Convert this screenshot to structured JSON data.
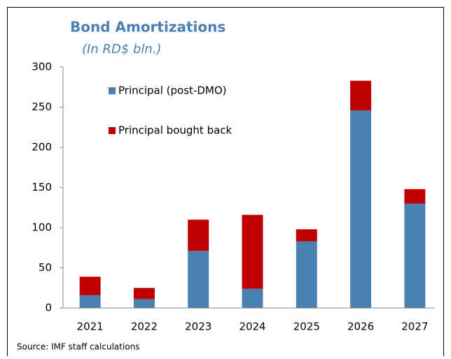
{
  "chart_data": {
    "type": "stacked_bar",
    "title": "Bond Amortizations",
    "subtitle": "(In RD$ bln.)",
    "categories": [
      "2021",
      "2022",
      "2023",
      "2024",
      "2025",
      "2026",
      "2027"
    ],
    "series": [
      {
        "name": "Principal (post-DMO)",
        "color": "#4a80b2",
        "values": [
          16,
          11,
          71,
          24,
          83,
          246,
          130
        ]
      },
      {
        "name": "Principal bought back",
        "color": "#c00000",
        "values": [
          23,
          14,
          39,
          92,
          15,
          37,
          18
        ]
      }
    ],
    "ylim": [
      0,
      300
    ],
    "yticks": [
      0,
      50,
      100,
      150,
      200,
      250,
      300
    ],
    "grid": false,
    "source": "Source: IMF staff calculations"
  }
}
